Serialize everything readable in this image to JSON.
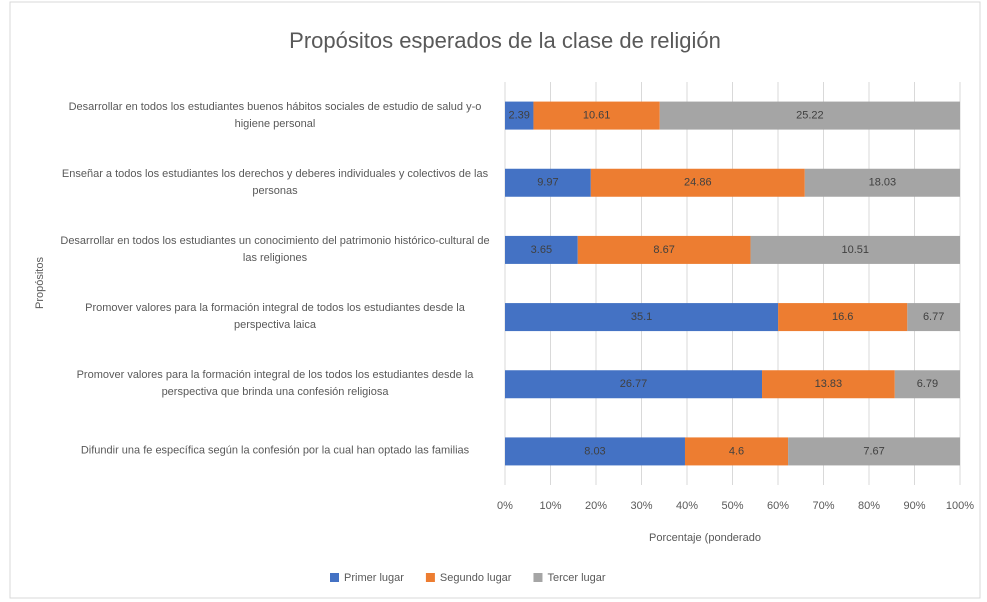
{
  "chart_data": {
    "type": "bar",
    "orientation": "horizontal",
    "stack": "percent",
    "title": "Propósitos esperados de la clase de religión",
    "xlabel": "Porcentaje (ponderado",
    "ylabel": "Propósitos",
    "categories": [
      "Desarrollar en todos los estudiantes buenos hábitos sociales de estudio de salud y-o higiene personal",
      "Enseñar a todos los estudiantes los derechos y deberes individuales y colectivos de las personas",
      "Desarrollar en todos los estudiantes un conocimiento del patrimonio histórico-cultural de las religiones",
      "Promover valores para la formación integral de todos los estudiantes desde la perspectiva laica",
      "Promover valores para la formación integral de los todos los estudiantes desde la perspectiva que brinda una confesión religiosa",
      "Difundir una fe específica según la confesión por la cual han optado las familias"
    ],
    "series": [
      {
        "name": "Primer lugar",
        "color": "#4472c4",
        "values": [
          2.39,
          9.97,
          3.65,
          35.1,
          26.77,
          8.03
        ]
      },
      {
        "name": "Segundo lugar",
        "color": "#ed7d31",
        "values": [
          10.61,
          24.86,
          8.67,
          16.6,
          13.83,
          4.6
        ]
      },
      {
        "name": "Tercer lugar",
        "color": "#a5a5a5",
        "values": [
          25.22,
          18.03,
          10.51,
          6.77,
          6.79,
          7.67
        ]
      }
    ],
    "xlim": [
      0,
      100
    ],
    "xticks": [
      {
        "value": 0,
        "label": "0%"
      },
      {
        "value": 10,
        "label": "10%"
      },
      {
        "value": 20,
        "label": "20%"
      },
      {
        "value": 30,
        "label": "30%"
      },
      {
        "value": 40,
        "label": "40%"
      },
      {
        "value": 50,
        "label": "50%"
      },
      {
        "value": 60,
        "label": "60%"
      },
      {
        "value": 70,
        "label": "70%"
      },
      {
        "value": 80,
        "label": "80%"
      },
      {
        "value": 90,
        "label": "90%"
      },
      {
        "value": 100,
        "label": "100%"
      }
    ],
    "grid": true,
    "legend": "bottom"
  }
}
